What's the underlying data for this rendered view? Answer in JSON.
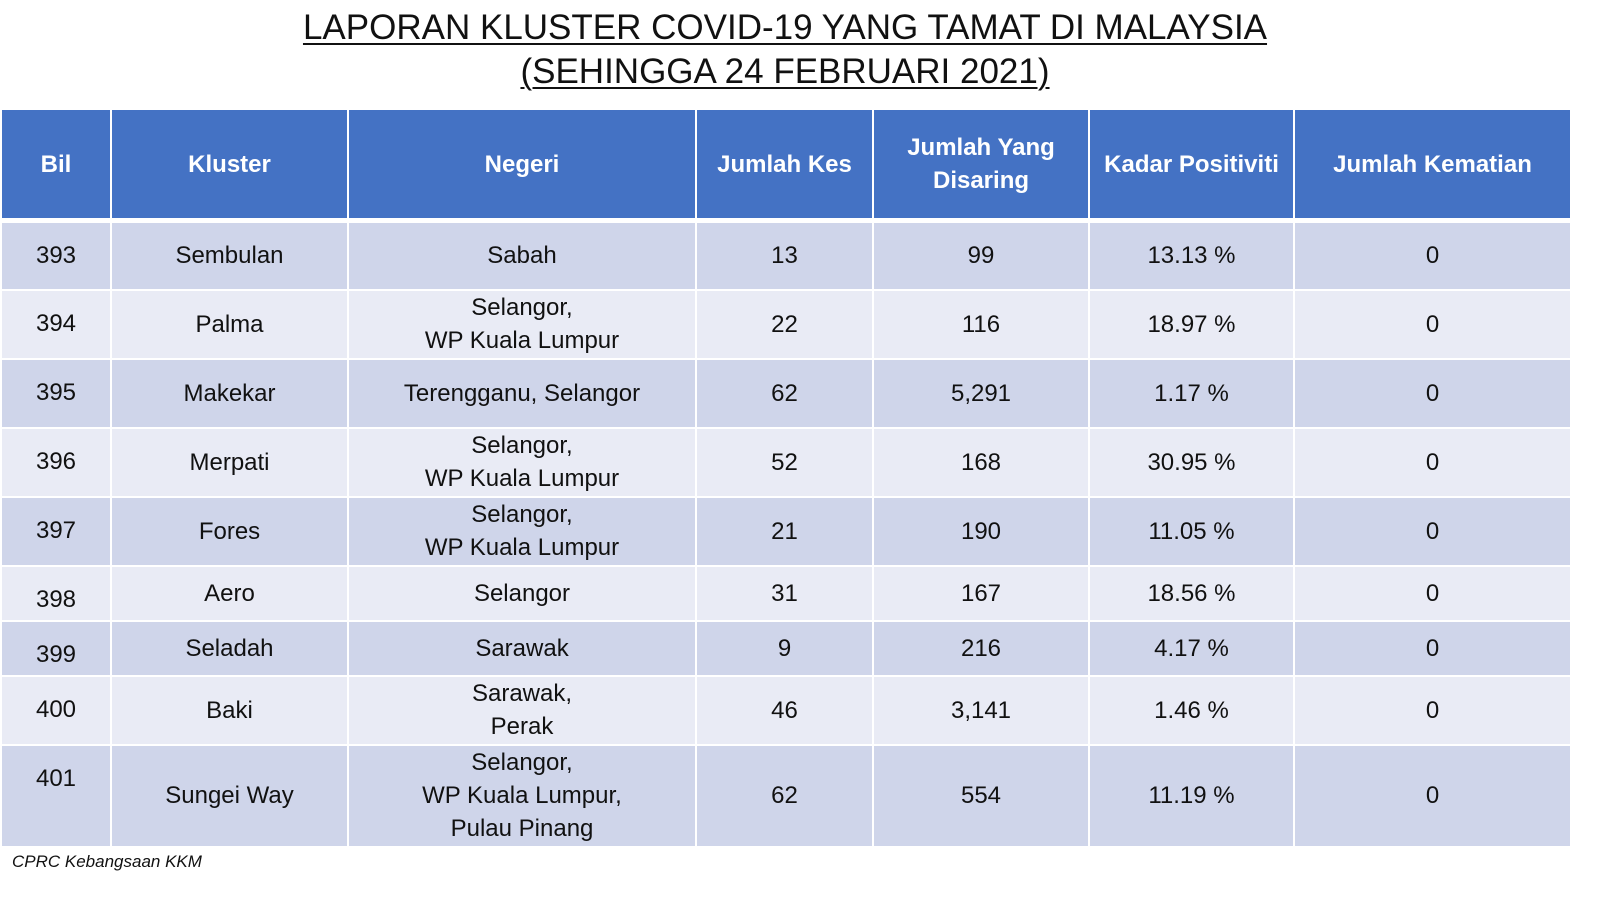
{
  "title": {
    "line1": "LAPORAN KLUSTER COVID-19 YANG TAMAT DI MALAYSIA",
    "line2": "(SEHINGGA 24 FEBRUARI 2021)"
  },
  "table": {
    "headers": {
      "bil": "Bil",
      "kluster": "Kluster",
      "negeri": "Negeri",
      "jumlah_kes": "Jumlah Kes",
      "jumlah_disaring_1": "Jumlah Yang",
      "jumlah_disaring_2": "Disaring",
      "kadar_positiviti": "Kadar Positiviti",
      "jumlah_kematian": "Jumlah Kematian"
    },
    "rows": [
      {
        "bil": "393",
        "kluster": "Sembulan",
        "negeri": [
          "Sabah"
        ],
        "kes": "13",
        "disaring": "99",
        "positiviti": "13.13 %",
        "kematian": "0"
      },
      {
        "bil": "394",
        "kluster": "Palma",
        "negeri": [
          "Selangor,",
          "WP Kuala Lumpur"
        ],
        "kes": "22",
        "disaring": "116",
        "positiviti": "18.97 %",
        "kematian": "0"
      },
      {
        "bil": "395",
        "kluster": "Makekar",
        "negeri": [
          "Terengganu, Selangor"
        ],
        "kes": "62",
        "disaring": "5,291",
        "positiviti": "1.17 %",
        "kematian": "0"
      },
      {
        "bil": "396",
        "kluster": "Merpati",
        "negeri": [
          "Selangor,",
          "WP Kuala Lumpur"
        ],
        "kes": "52",
        "disaring": "168",
        "positiviti": "30.95 %",
        "kematian": "0"
      },
      {
        "bil": "397",
        "kluster": "Fores",
        "negeri": [
          "Selangor,",
          "WP Kuala Lumpur"
        ],
        "kes": "21",
        "disaring": "190",
        "positiviti": "11.05 %",
        "kematian": "0"
      },
      {
        "bil": "398",
        "kluster": "Aero",
        "negeri": [
          "Selangor"
        ],
        "kes": "31",
        "disaring": "167",
        "positiviti": "18.56 %",
        "kematian": "0"
      },
      {
        "bil": "399",
        "kluster": "Seladah",
        "negeri": [
          "Sarawak"
        ],
        "kes": "9",
        "disaring": "216",
        "positiviti": "4.17 %",
        "kematian": "0"
      },
      {
        "bil": "400",
        "kluster": "Baki",
        "negeri": [
          "Sarawak,",
          "Perak"
        ],
        "kes": "46",
        "disaring": "3,141",
        "positiviti": "1.46 %",
        "kematian": "0"
      },
      {
        "bil": "401",
        "kluster": "Sungei Way",
        "negeri": [
          "Selangor,",
          "WP Kuala Lumpur,",
          "Pulau Pinang"
        ],
        "kes": "62",
        "disaring": "554",
        "positiviti": "11.19 %",
        "kematian": "0"
      }
    ]
  },
  "source": "CPRC Kebangsaan KKM",
  "colors": {
    "header_bg": "#4472c4",
    "row_dark": "#cfd5ea",
    "row_light": "#e9ebf5"
  }
}
